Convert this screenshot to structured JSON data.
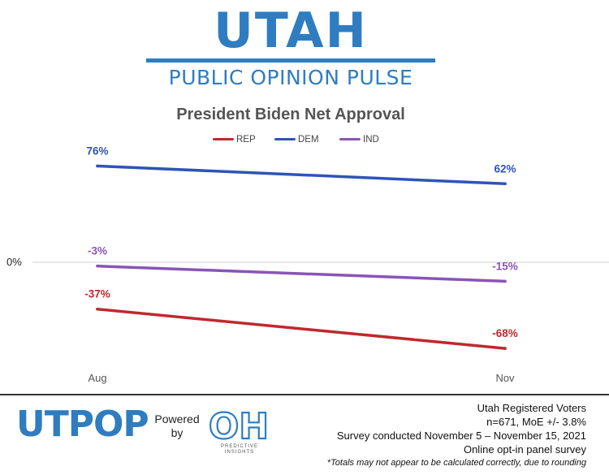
{
  "header": {
    "brand_big": "UTAH",
    "brand_sub": "PUBLIC OPINION PULSE"
  },
  "chart_data": {
    "type": "line",
    "title": "President Biden Net Approval",
    "categories": [
      "Aug",
      "Nov"
    ],
    "zero_label": "0%",
    "ylim": [
      -85,
      85
    ],
    "series": [
      {
        "name": "REP",
        "color": "#c0282d",
        "values": [
          -37,
          -68
        ],
        "labels": [
          "-37%",
          "-68%"
        ]
      },
      {
        "name": "DEM",
        "color": "#2f54b8",
        "values": [
          76,
          62
        ],
        "labels": [
          "76%",
          "62%"
        ]
      },
      {
        "name": "IND",
        "color": "#8a55b5",
        "values": [
          -3,
          -15
        ],
        "labels": [
          "-3%",
          "-15%"
        ]
      }
    ]
  },
  "footer": {
    "logo_left": "UTPOP",
    "powered_line1": "Powered",
    "powered_line2": "by",
    "logo_right": "OH",
    "logo_right_caption_1": "PREDICTIVE",
    "logo_right_caption_2": "INSIGHTS",
    "info": [
      "Utah Registered Voters",
      "n=671, MoE +/- 3.8%",
      "Survey conducted November 5 – November 15, 2021",
      "Online opt-in panel survey"
    ],
    "note": "*Totals may not appear to be calculated correctly, due to rounding"
  },
  "colors": {
    "brand_blue": "#2f7dc0",
    "title_gray": "#555555"
  }
}
